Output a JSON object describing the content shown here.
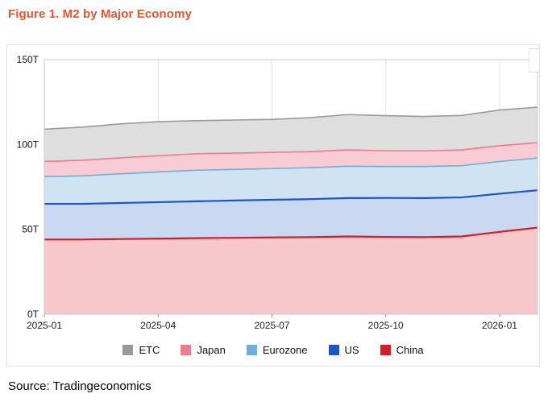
{
  "page": {
    "title": "Figure 1. M2 by Major Economy",
    "title_color": "#E4572E",
    "source": "Source: Tradingeconomics"
  },
  "chart_data": {
    "type": "area",
    "stacked": true,
    "title": "Figure 1. M2 by Major Economy",
    "unit": "T",
    "grid": "vertical",
    "legend_position": "bottom",
    "ylim": [
      0,
      150
    ],
    "y_ticks": [
      0,
      50,
      100,
      150
    ],
    "y_tick_labels": [
      "0T",
      "50T",
      "100T",
      "150T"
    ],
    "x": [
      "2025-01",
      "2025-02",
      "2025-03",
      "2025-04",
      "2025-05",
      "2025-06",
      "2025-07",
      "2025-08",
      "2025-09",
      "2025-10",
      "2025-11",
      "2025-12",
      "2026-01",
      "2026-02"
    ],
    "x_ticks": [
      "2025-01",
      "2025-04",
      "2025-07",
      "2025-10",
      "2026-01"
    ],
    "legend_order": [
      "ETC",
      "Japan",
      "Eurozone",
      "US",
      "China"
    ],
    "series": [
      {
        "name": "China",
        "color": "#D21F26",
        "fill": "#F5C8CB",
        "values": [
          44,
          44,
          44.3,
          44.5,
          44.8,
          45,
          45.2,
          45.4,
          45.8,
          45.5,
          45.4,
          45.8,
          48.5,
          51
        ]
      },
      {
        "name": "US",
        "color": "#1A56C4",
        "fill": "#CBD8F2",
        "values": [
          21,
          21,
          21.2,
          21.5,
          21.7,
          22,
          22.2,
          22.4,
          22.6,
          23,
          23,
          23,
          22.5,
          22
        ]
      },
      {
        "name": "Eurozone",
        "color": "#6FAFD7",
        "fill": "#CFE3F2",
        "values": [
          16,
          16.5,
          17.2,
          17.8,
          18.3,
          18.3,
          18.4,
          18.5,
          18.8,
          18.5,
          18.6,
          18.7,
          19,
          19
        ]
      },
      {
        "name": "Japan",
        "color": "#EF7B8B",
        "fill": "#F8CCD4",
        "values": [
          9,
          9.2,
          9.4,
          9.6,
          9.7,
          9.6,
          9.5,
          9.5,
          9.6,
          9.3,
          9.2,
          9.3,
          9.3,
          9
        ]
      },
      {
        "name": "ETC",
        "color": "#999999",
        "fill": "#DEDEDE",
        "values": [
          19,
          19.5,
          20,
          20,
          19.5,
          19.5,
          19.5,
          20,
          20.8,
          20.7,
          20.3,
          20.3,
          21,
          21
        ]
      }
    ]
  }
}
